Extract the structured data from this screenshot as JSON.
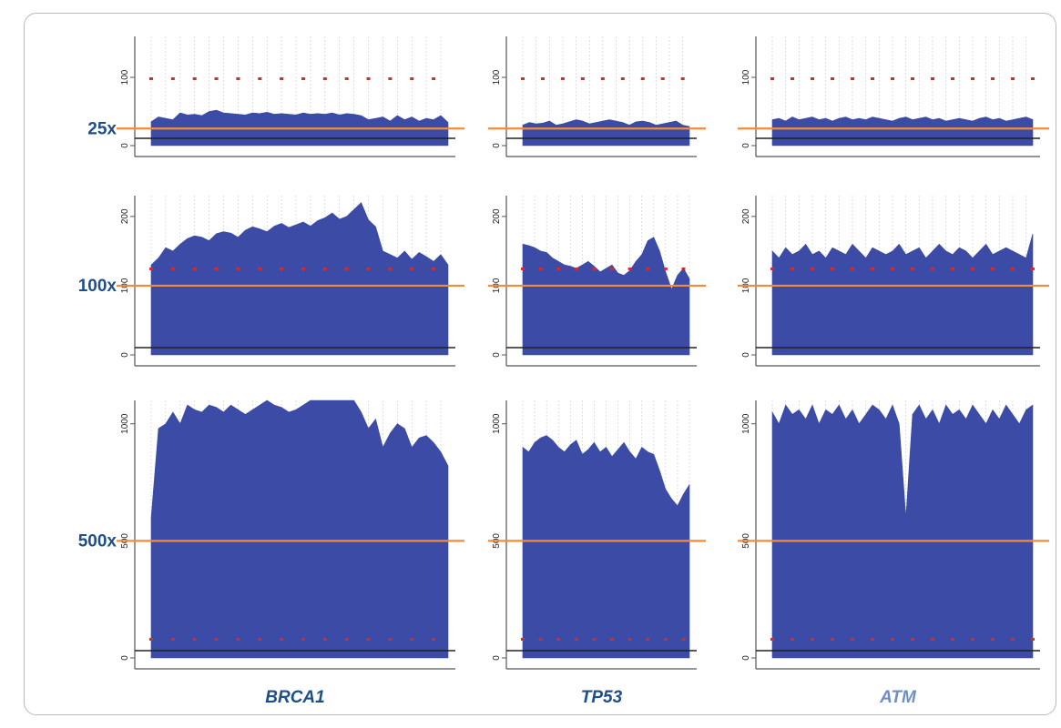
{
  "chart_data": {
    "type": "area",
    "title": "",
    "genes": [
      {
        "name": "BRCA1",
        "color": "#1f4e8c"
      },
      {
        "name": "TP53",
        "color": "#1f4e8c"
      },
      {
        "name": "ATM",
        "color": "#6f8fc4"
      }
    ],
    "rows": [
      {
        "label": "25x",
        "threshold": 25,
        "ylim": [
          0,
          160
        ],
        "ticks": [
          "0",
          "100"
        ],
        "tick_values": [
          0,
          100
        ],
        "panels": [
          {
            "gene": "BRCA1",
            "values": [
              35,
              42,
              40,
              38,
              48,
              45,
              46,
              44,
              50,
              52,
              48,
              47,
              46,
              45,
              48,
              47,
              49,
              46,
              47,
              46,
              45,
              48,
              46,
              47,
              46,
              48,
              45,
              47,
              46,
              44,
              38,
              40,
              42,
              36,
              44,
              38,
              42,
              36,
              40,
              38,
              44,
              34
            ]
          },
          {
            "gene": "TP53",
            "values": [
              30,
              34,
              32,
              33,
              36,
              30,
              32,
              35,
              38,
              36,
              32,
              34,
              36,
              38,
              36,
              34,
              30,
              35,
              36,
              34,
              30,
              32,
              34,
              36,
              30,
              28
            ]
          },
          {
            "gene": "ATM",
            "values": [
              38,
              40,
              36,
              42,
              38,
              40,
              42,
              38,
              40,
              36,
              40,
              42,
              38,
              40,
              38,
              42,
              40,
              38,
              36,
              40,
              42,
              38,
              40,
              42,
              38,
              40,
              36,
              38,
              40,
              38,
              36,
              40,
              42,
              38,
              40,
              36,
              38,
              40,
              42,
              38
            ]
          }
        ]
      },
      {
        "label": "100x",
        "threshold": 100,
        "ylim": [
          0,
          230
        ],
        "ticks": [
          "0",
          "100",
          "200"
        ],
        "tick_values": [
          0,
          100,
          200
        ],
        "panels": [
          {
            "gene": "BRCA1",
            "values": [
              130,
              140,
              155,
              150,
              160,
              168,
              172,
              170,
              165,
              175,
              178,
              176,
              170,
              180,
              185,
              182,
              178,
              186,
              190,
              184,
              188,
              192,
              186,
              194,
              198,
              205,
              196,
              200,
              210,
              220,
              195,
              185,
              150,
              145,
              140,
              150,
              138,
              148,
              142,
              135,
              145,
              130
            ]
          },
          {
            "gene": "TP53",
            "values": [
              160,
              158,
              155,
              150,
              148,
              140,
              135,
              130,
              128,
              125,
              130,
              135,
              128,
              120,
              125,
              130,
              118,
              115,
              122,
              135,
              145,
              165,
              170,
              150,
              120,
              95,
              115,
              125,
              110
            ]
          },
          {
            "gene": "ATM",
            "values": [
              150,
              140,
              155,
              145,
              150,
              160,
              145,
              150,
              140,
              155,
              150,
              145,
              160,
              150,
              140,
              155,
              150,
              145,
              150,
              160,
              145,
              150,
              155,
              140,
              150,
              160,
              150,
              145,
              155,
              150,
              140,
              150,
              160,
              145,
              150,
              155,
              150,
              145,
              140,
              175
            ]
          }
        ]
      },
      {
        "label": "500x",
        "threshold": 500,
        "ylim": [
          0,
          1100
        ],
        "ticks": [
          "0",
          "500",
          "1000"
        ],
        "tick_values": [
          0,
          500,
          1000
        ],
        "panels": [
          {
            "gene": "BRCA1",
            "values": [
              600,
              980,
              1000,
              1050,
              1000,
              1080,
              1060,
              1050,
              1080,
              1070,
              1050,
              1080,
              1060,
              1040,
              1060,
              1080,
              1100,
              1080,
              1070,
              1050,
              1060,
              1080,
              1100,
              1100,
              1100,
              1100,
              1100,
              1100,
              1100,
              1050,
              980,
              1020,
              900,
              960,
              1000,
              980,
              900,
              940,
              950,
              920,
              880,
              820
            ]
          },
          {
            "gene": "TP53",
            "values": [
              900,
              880,
              920,
              940,
              950,
              930,
              900,
              880,
              910,
              930,
              870,
              890,
              920,
              880,
              900,
              860,
              890,
              920,
              880,
              850,
              900,
              880,
              870,
              800,
              720,
              680,
              650,
              700,
              740
            ]
          },
          {
            "gene": "ATM",
            "values": [
              1050,
              1000,
              1080,
              1040,
              1060,
              1020,
              1080,
              1000,
              1060,
              1040,
              1080,
              1020,
              1060,
              1000,
              1040,
              1080,
              1060,
              1020,
              1080,
              1000,
              600,
              1040,
              1080,
              1020,
              1060,
              1000,
              1080,
              1040,
              1060,
              1020,
              1080,
              1040,
              1000,
              1060,
              1020,
              1080,
              1040,
              1000,
              1060,
              1080
            ]
          }
        ]
      }
    ],
    "colors": {
      "fill": "#3b4ba6",
      "threshold_line": "#f28c3a",
      "baseline_line": "#222222",
      "row_label": "#1f4e8c",
      "grid": "#c8c8d8"
    },
    "grid": true,
    "legend": "none"
  }
}
